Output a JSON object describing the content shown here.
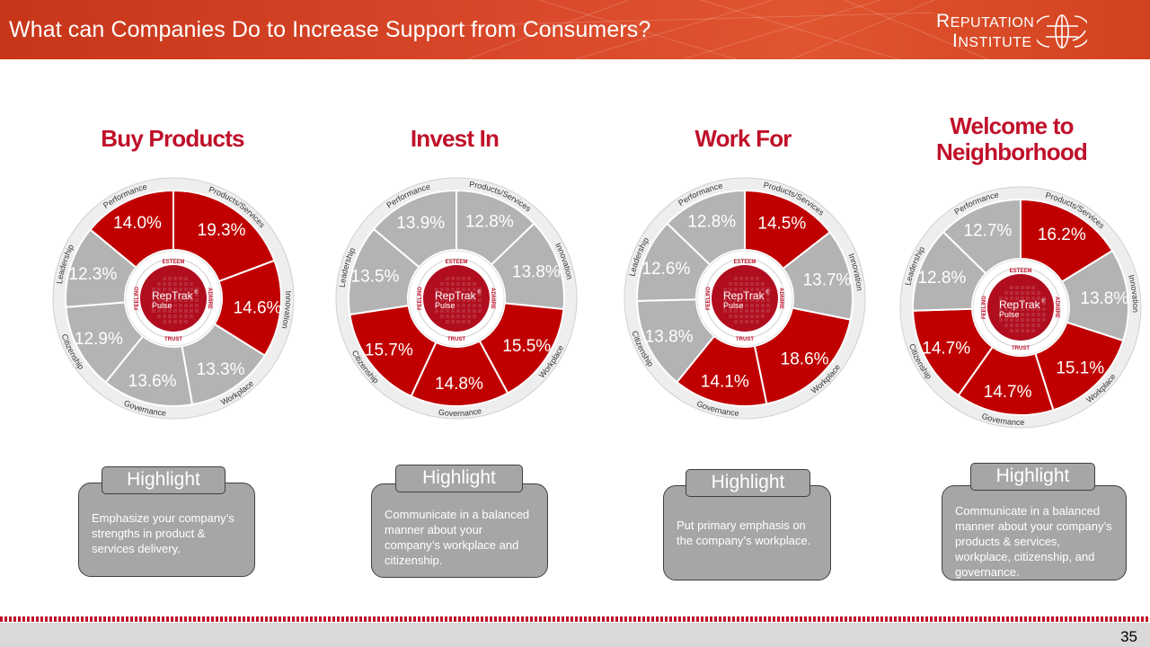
{
  "header": {
    "title": "What can Companies Do to Increase Support from Consumers?",
    "logo_line1": "Reputation",
    "logo_line2": "Institute"
  },
  "colors": {
    "highlight": "#c00000",
    "neutral": "#b3b3b3",
    "title_red": "#c0102a"
  },
  "chart_data": [
    {
      "type": "pie",
      "title": "Buy Products",
      "categories": [
        "Products/Services",
        "Innovation",
        "Workplace",
        "Governance",
        "Citizenship",
        "Leadership",
        "Performance"
      ],
      "values": [
        19.3,
        14.6,
        13.3,
        13.6,
        12.9,
        12.3,
        14.0
      ],
      "labels": [
        "19.3%",
        "14.6%",
        "13.3%",
        "13.6%",
        "12.9%",
        "12.3%",
        "14.0%"
      ],
      "highlighted": [
        "Products/Services",
        "Innovation",
        "Performance"
      ]
    },
    {
      "type": "pie",
      "title": "Invest In",
      "categories": [
        "Products/Services",
        "Innovation",
        "Workplace",
        "Governance",
        "Citizenship",
        "Leadership",
        "Performance"
      ],
      "values": [
        12.8,
        13.8,
        15.5,
        14.8,
        15.7,
        13.5,
        13.9
      ],
      "labels": [
        "12.8%",
        "13.8%",
        "15.5%",
        "14.8%",
        "15.7%",
        "13.5%",
        "13.9%"
      ],
      "highlighted": [
        "Workplace",
        "Governance",
        "Citizenship"
      ]
    },
    {
      "type": "pie",
      "title": "Work For",
      "categories": [
        "Products/Services",
        "Innovation",
        "Workplace",
        "Governance",
        "Citizenship",
        "Leadership",
        "Performance"
      ],
      "values": [
        14.5,
        13.7,
        18.6,
        14.1,
        13.8,
        12.6,
        12.8
      ],
      "labels": [
        "14.5%",
        "13.7%",
        "18.6%",
        "14.1%",
        "13.8%",
        "12.6%",
        "12.8%"
      ],
      "highlighted": [
        "Products/Services",
        "Workplace",
        "Governance"
      ]
    },
    {
      "type": "pie",
      "title": "Welcome to Neighborhood",
      "categories": [
        "Products/Services",
        "Innovation",
        "Workplace",
        "Governance",
        "Citizenship",
        "Leadership",
        "Performance"
      ],
      "values": [
        16.2,
        13.8,
        15.1,
        14.7,
        14.7,
        12.8,
        12.7
      ],
      "labels": [
        "16.2%",
        "13.8%",
        "15.1%",
        "14.7%",
        "14.7%",
        "12.8%",
        "12.7%"
      ],
      "highlighted": [
        "Products/Services",
        "Workplace",
        "Governance",
        "Citizenship"
      ]
    }
  ],
  "center": {
    "brand": "RepTrak",
    "reg": "®",
    "sub": "Pulse",
    "ring": [
      "ESTEEM",
      "ADMIRE",
      "TRUST",
      "FEELING"
    ]
  },
  "highlights": [
    {
      "tab": "Highlight",
      "text": "Emphasize your company’s strengths in product & services delivery."
    },
    {
      "tab": "Highlight",
      "text": "Communicate in a balanced manner about your company’s workplace and citizenship."
    },
    {
      "tab": "Highlight",
      "text": "Put primary emphasis on the company’s workplace."
    },
    {
      "tab": "Highlight",
      "text": "Communicate in a balanced manner about your company’s products & services, workplace, citizenship, and governance."
    }
  ],
  "page_number": "35"
}
